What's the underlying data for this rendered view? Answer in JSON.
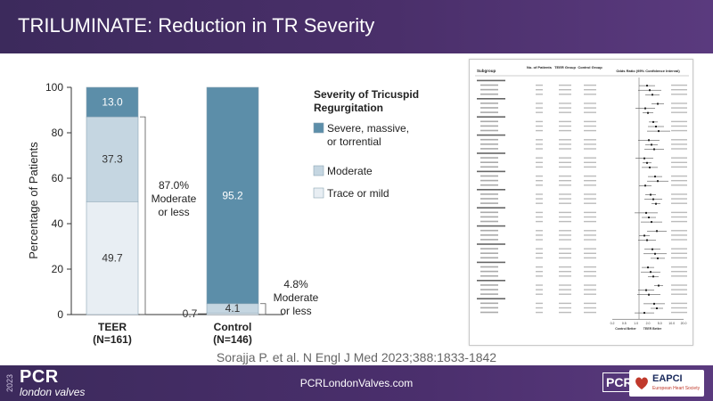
{
  "header": {
    "title": "TRILUMINATE: Reduction in TR Severity"
  },
  "chart_data": {
    "type": "bar",
    "stacked": true,
    "ylabel": "Percentage of Patients",
    "ylim": [
      0,
      100
    ],
    "yticks": [
      0,
      20,
      40,
      60,
      80,
      100
    ],
    "categories": [
      "TEER",
      "Control"
    ],
    "category_labels": [
      {
        "name": "TEER",
        "n": "(N=161)"
      },
      {
        "name": "Control",
        "n": "(N=146)"
      }
    ],
    "series": [
      {
        "name": "Trace or mild",
        "values": [
          49.7,
          0.7
        ],
        "color": "#e8eef3",
        "labels": [
          "49.7",
          "0.7"
        ]
      },
      {
        "name": "Moderate",
        "values": [
          37.3,
          4.1
        ],
        "color": "#c5d6e1",
        "labels": [
          "37.3",
          "4.1"
        ]
      },
      {
        "name": "Severe, massive, or torrential",
        "values": [
          13.0,
          95.2
        ],
        "color": "#5c8ea9",
        "labels": [
          "13.0",
          "95.2"
        ]
      }
    ],
    "legend": {
      "title": "Severity of Tricuspid Regurgitation",
      "position": "right",
      "items": [
        {
          "label": "Severe, massive, or torrential",
          "color": "#5c8ea9"
        },
        {
          "label": "Moderate",
          "color": "#c5d6e1"
        },
        {
          "label": "Trace or mild",
          "color": "#e8eef3"
        }
      ]
    },
    "annotations": [
      {
        "lines": [
          "87.0%",
          "Moderate",
          "or less"
        ],
        "group": "TEER"
      },
      {
        "lines": [
          "4.8%",
          "Moderate",
          "or less"
        ],
        "group": "Control"
      }
    ]
  },
  "forest_plot": {
    "headers": [
      "Subgroup",
      "No. of Patients",
      "TEER Group",
      "Control Group",
      "Odds Ratio (95% Confidence Interval)"
    ],
    "axis_ticks": [
      "0.2",
      "0.5",
      "1.0",
      "2.0",
      "5.0",
      "10.0",
      "20.0"
    ],
    "favors": [
      "Control Better",
      "TEER Better"
    ]
  },
  "citation": "Sorajja P. et al. N Engl J Med 2023;388:1833-1842",
  "footer": {
    "year": "2023",
    "brand": "PCR",
    "sub_brand": "london valves",
    "url": "PCRLondonValves.com",
    "logo_pcr": "PCR",
    "logo_eapci": "EAPCI",
    "logo_eapci_sub": "European Heart Society"
  }
}
